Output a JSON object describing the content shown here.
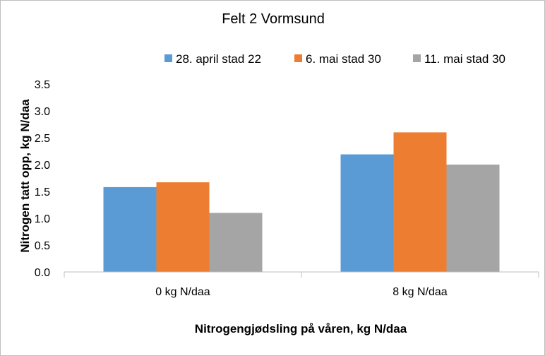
{
  "chart_data": {
    "type": "bar",
    "title": "Felt 2 Vormsund",
    "xlabel": "Nitrogengjødsling på våren, kg N/daa",
    "ylabel": "Nitrogen tatt opp, kg N/daa",
    "ylim": [
      0,
      3.5
    ],
    "ytick_step": 0.5,
    "ytick_labels": [
      "0.0",
      "0.5",
      "1.0",
      "1.5",
      "2.0",
      "2.5",
      "3.0",
      "3.5"
    ],
    "categories": [
      "0 kg N/daa",
      "8 kg N/daa"
    ],
    "series": [
      {
        "name": "28. april stad 22",
        "color": "#5b9bd5",
        "values": [
          1.58,
          2.19
        ]
      },
      {
        "name": "6. mai stad 30",
        "color": "#ed7d31",
        "values": [
          1.67,
          2.6
        ]
      },
      {
        "name": "11. mai stad 30",
        "color": "#a5a5a5",
        "values": [
          1.1,
          2.0
        ]
      }
    ],
    "legend_position": "top-right",
    "grid": false
  }
}
